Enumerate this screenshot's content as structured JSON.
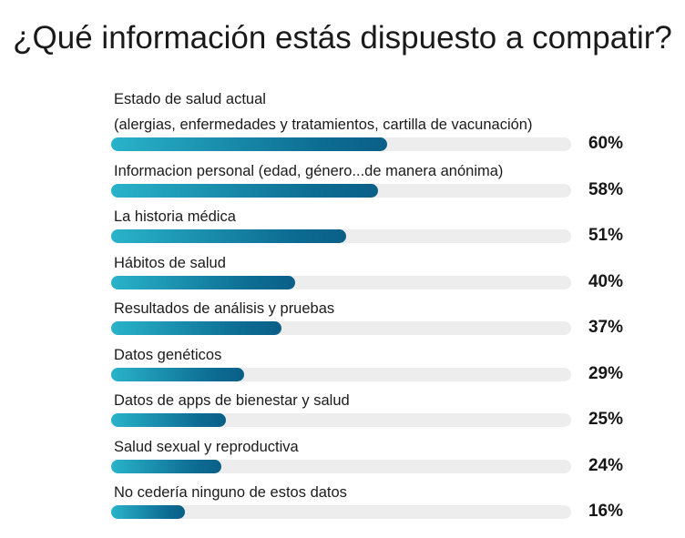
{
  "chart_data": {
    "type": "bar",
    "orientation": "horizontal",
    "title": "¿Qué información estás dispuesto a compatir?",
    "xlim": [
      0,
      100
    ],
    "unit": "%",
    "grid": false,
    "colors": {
      "bar_start": "#29b3c9",
      "bar_end": "#0a5f87",
      "track": "#ededed"
    },
    "categories": [
      [
        "Estado de salud actual",
        "(alergias, enfermedades y tratamientos, cartilla de vacunación)"
      ],
      [
        "Informacion personal (edad, género...de manera anónima)"
      ],
      [
        "La historia médica"
      ],
      [
        "Hábitos de salud"
      ],
      [
        "Resultados de análisis y pruebas"
      ],
      [
        "Datos genéticos"
      ],
      [
        "Datos de apps de bienestar y salud"
      ],
      [
        "Salud sexual y reproductiva"
      ],
      [
        "No cedería ninguno de estos datos"
      ]
    ],
    "values": [
      60,
      58,
      51,
      40,
      37,
      29,
      25,
      24,
      16
    ],
    "value_labels": [
      "60%",
      "58%",
      "51%",
      "40%",
      "37%",
      "29%",
      "25%",
      "24%",
      "16%"
    ]
  }
}
